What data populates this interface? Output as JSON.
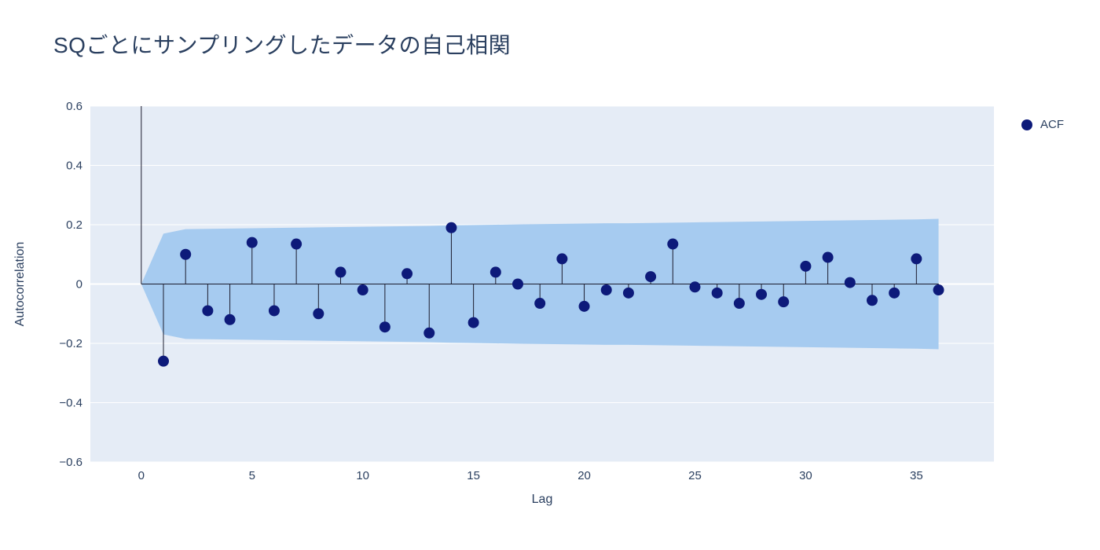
{
  "chart_data": {
    "type": "stem",
    "title": "SQごとにサンプリングしたデータの自己相関",
    "xlabel": "Lag",
    "ylabel": "Autocorrelation",
    "legend": [
      {
        "name": "ACF"
      }
    ],
    "x": [
      0,
      1,
      2,
      3,
      4,
      5,
      6,
      7,
      8,
      9,
      10,
      11,
      12,
      13,
      14,
      15,
      16,
      17,
      18,
      19,
      20,
      21,
      22,
      23,
      24,
      25,
      26,
      27,
      28,
      29,
      30,
      31,
      32,
      33,
      34,
      35,
      36
    ],
    "values": [
      1.0,
      -0.26,
      0.1,
      -0.09,
      -0.12,
      0.14,
      -0.09,
      0.135,
      -0.1,
      0.04,
      -0.02,
      -0.145,
      0.035,
      -0.165,
      0.19,
      -0.13,
      0.04,
      0.0,
      -0.065,
      0.085,
      -0.075,
      -0.02,
      -0.03,
      0.025,
      0.135,
      -0.01,
      -0.03,
      -0.065,
      -0.035,
      -0.06,
      0.06,
      0.09,
      0.005,
      -0.055,
      -0.03,
      0.085,
      -0.02
    ],
    "band_upper": [
      0,
      0.17,
      0.185,
      0.186,
      0.187,
      0.188,
      0.189,
      0.19,
      0.191,
      0.192,
      0.193,
      0.194,
      0.195,
      0.196,
      0.198,
      0.199,
      0.2,
      0.201,
      0.202,
      0.203,
      0.204,
      0.205,
      0.205,
      0.206,
      0.207,
      0.208,
      0.209,
      0.21,
      0.211,
      0.212,
      0.213,
      0.214,
      0.215,
      0.216,
      0.217,
      0.218,
      0.22
    ],
    "band_lower": [
      0,
      -0.17,
      -0.185,
      -0.186,
      -0.187,
      -0.188,
      -0.189,
      -0.19,
      -0.191,
      -0.192,
      -0.193,
      -0.194,
      -0.195,
      -0.196,
      -0.198,
      -0.199,
      -0.2,
      -0.201,
      -0.202,
      -0.203,
      -0.204,
      -0.205,
      -0.205,
      -0.206,
      -0.207,
      -0.208,
      -0.209,
      -0.21,
      -0.211,
      -0.212,
      -0.213,
      -0.214,
      -0.215,
      -0.216,
      -0.217,
      -0.218,
      -0.22
    ],
    "xticks": [
      0,
      5,
      10,
      15,
      20,
      25,
      30,
      35
    ],
    "yticks": [
      -0.6,
      -0.4,
      -0.2,
      0,
      0.2,
      0.4,
      0.6
    ],
    "xlim": [
      -2.3,
      38.5
    ],
    "ylim": [
      -0.6,
      0.6
    ],
    "grid": true,
    "legend_position": "top-right-outside",
    "colors": {
      "marker": "#0d1a7a",
      "stem": "#1c1c2e",
      "band": "#a6cbf0",
      "plot_bg": "#e5ecf6",
      "grid": "#ffffff",
      "text": "#2a3f5f"
    }
  }
}
